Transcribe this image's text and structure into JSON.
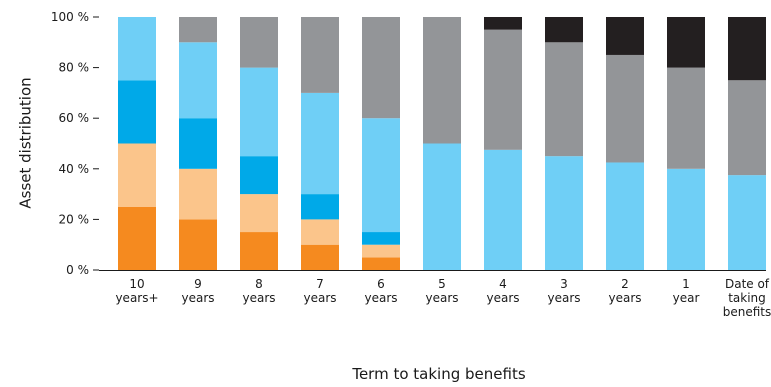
{
  "chart_data": {
    "type": "bar",
    "stacked": true,
    "title": "",
    "xlabel": "Term to taking benefits",
    "ylabel": "Asset distribution",
    "ylim": [
      0,
      100
    ],
    "yticks": [
      0,
      20,
      40,
      60,
      80,
      100
    ],
    "ytick_labels": [
      "0 %",
      "20 %",
      "40 %",
      "60 %",
      "80 %",
      "100 %"
    ],
    "grid": false,
    "categories": [
      [
        "10",
        "years+"
      ],
      [
        "9",
        "years"
      ],
      [
        "8",
        "years"
      ],
      [
        "7",
        "years"
      ],
      [
        "6",
        "years"
      ],
      [
        "5",
        "years"
      ],
      [
        "4",
        "years"
      ],
      [
        "3",
        "years"
      ],
      [
        "2",
        "years"
      ],
      [
        "1",
        "year"
      ],
      [
        "Date of",
        "taking",
        "benefits"
      ]
    ],
    "series": [
      {
        "color": "#f58a1f",
        "values": [
          25,
          20,
          15,
          10,
          5,
          0,
          0,
          0,
          0,
          0,
          0
        ]
      },
      {
        "color": "#fbc58b",
        "values": [
          25,
          20,
          15,
          10,
          5,
          0,
          0,
          0,
          0,
          0,
          0
        ]
      },
      {
        "color": "#00a9e8",
        "values": [
          25,
          20,
          15,
          10,
          5,
          0,
          0,
          0,
          0,
          0,
          0
        ]
      },
      {
        "color": "#6fcff6",
        "values": [
          25,
          30,
          35,
          40,
          45,
          50,
          47.5,
          45,
          42.5,
          40,
          37.5
        ]
      },
      {
        "color": "#939598",
        "values": [
          0,
          10,
          20,
          30,
          40,
          50,
          47.5,
          45,
          42.5,
          40,
          37.5
        ]
      },
      {
        "color": "#231f20",
        "values": [
          0,
          0,
          0,
          0,
          0,
          0,
          5,
          10,
          15,
          20,
          25
        ]
      }
    ]
  }
}
